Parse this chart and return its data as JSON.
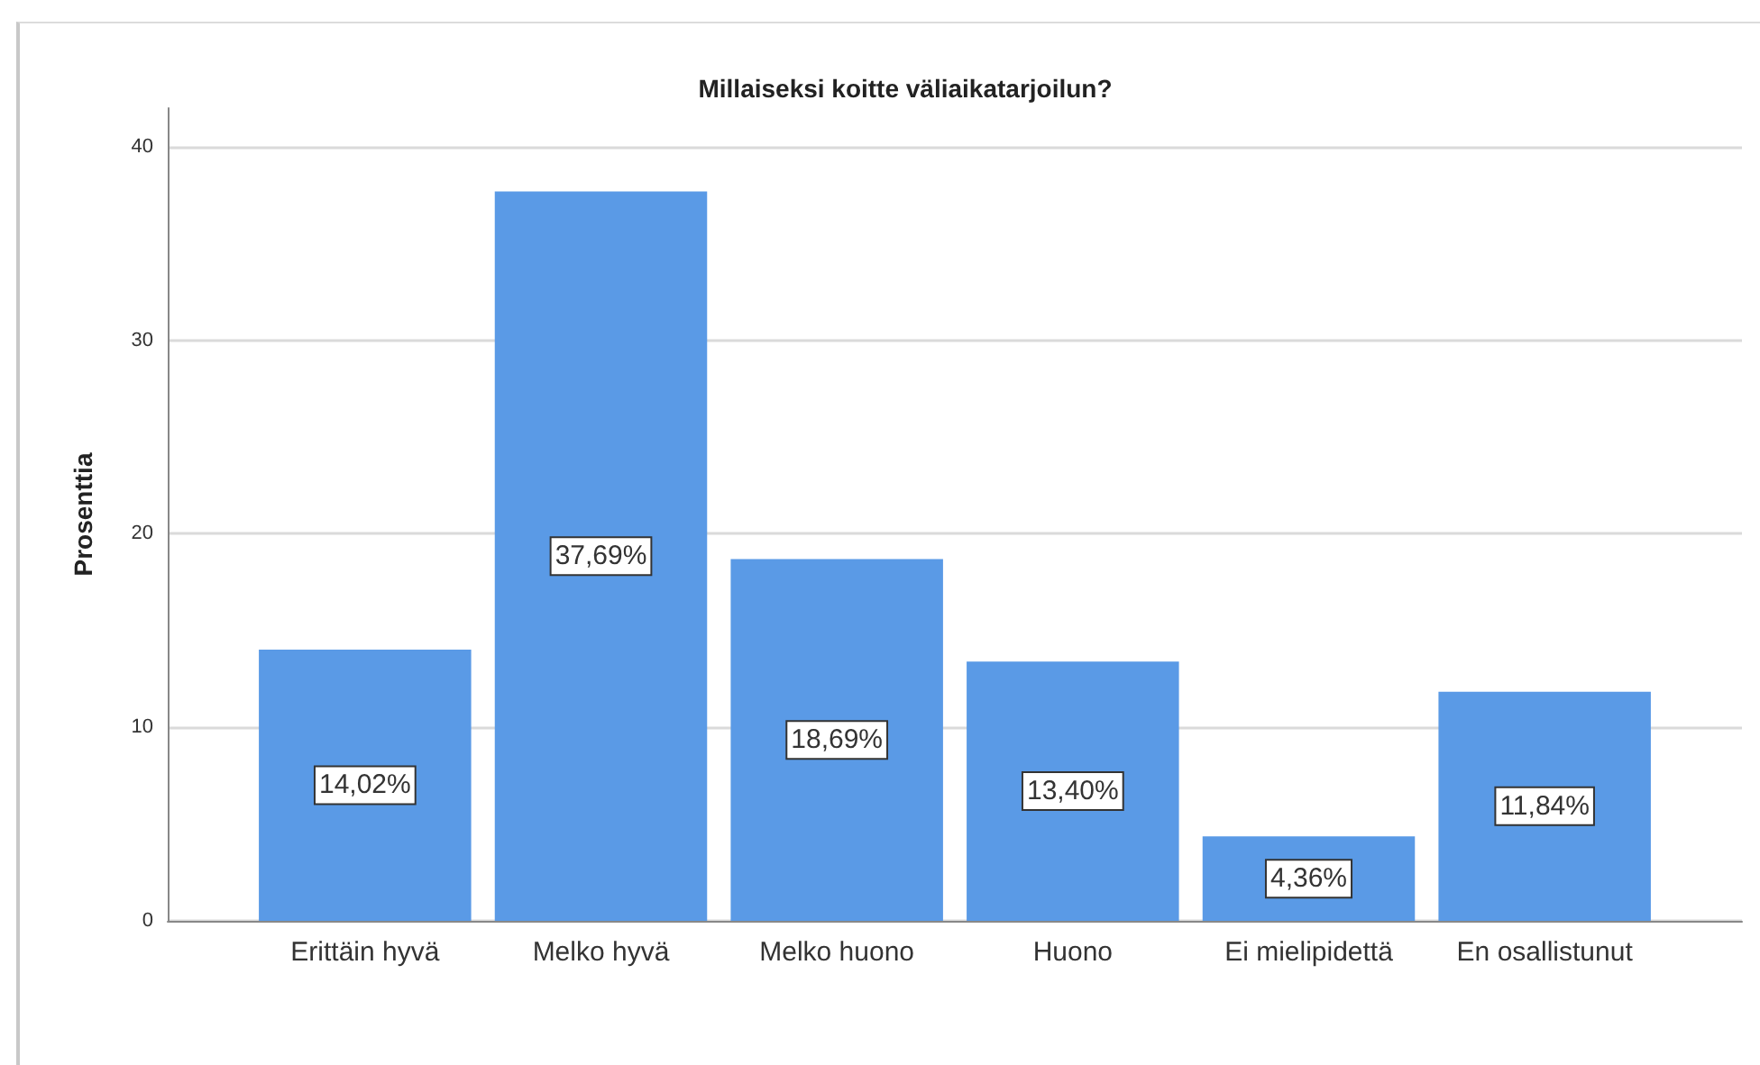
{
  "chart_data": {
    "type": "bar",
    "title": "Millaiseksi koitte väliaikatarjoilun?",
    "ylabel": "Prosenttia",
    "categories": [
      "Erittäin hyvä",
      "Melko hyvä",
      "Melko huono",
      "Huono",
      "Ei mielipidettä",
      "En osallistunut"
    ],
    "values": [
      14.02,
      37.69,
      18.69,
      13.4,
      4.36,
      11.84
    ],
    "color": "#5a9ae6",
    "value_labels": [
      "14,02%",
      "37,69%",
      "18,69%",
      "13,40%",
      "4,36%",
      "11,84%"
    ],
    "ylim": [
      0,
      42
    ],
    "yticks": [
      0,
      10,
      20,
      30,
      40
    ],
    "grid": "y"
  }
}
